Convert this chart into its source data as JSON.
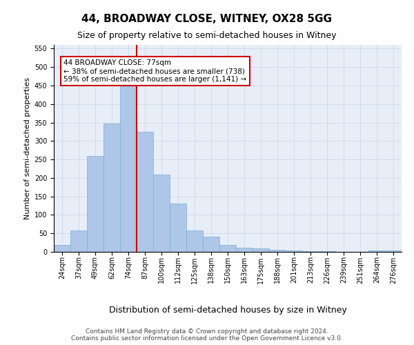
{
  "title_line1": "44, BROADWAY CLOSE, WITNEY, OX28 5GG",
  "title_line2": "Size of property relative to semi-detached houses in Witney",
  "xlabel": "Distribution of semi-detached houses by size in Witney",
  "ylabel": "Number of semi-detached properties",
  "footer_line1": "Contains HM Land Registry data © Crown copyright and database right 2024.",
  "footer_line2": "Contains public sector information licensed under the Open Government Licence v3.0.",
  "annotation_title": "44 BROADWAY CLOSE: 77sqm",
  "annotation_line1": "← 38% of semi-detached houses are smaller (738)",
  "annotation_line2": "59% of semi-detached houses are larger (1,141) →",
  "bar_labels": [
    "24sqm",
    "37sqm",
    "49sqm",
    "62sqm",
    "74sqm",
    "87sqm",
    "100sqm",
    "112sqm",
    "125sqm",
    "138sqm",
    "150sqm",
    "163sqm",
    "175sqm",
    "188sqm",
    "201sqm",
    "213sqm",
    "226sqm",
    "239sqm",
    "251sqm",
    "264sqm",
    "276sqm"
  ],
  "bar_values": [
    18,
    57,
    260,
    347,
    449,
    325,
    210,
    130,
    57,
    41,
    18,
    12,
    9,
    6,
    4,
    1,
    1,
    0,
    0,
    4,
    3
  ],
  "bar_color": "#aec6e8",
  "bar_edgecolor": "#7aafd4",
  "vline_color": "#cc0000",
  "vline_x": 4.5,
  "ylim": [
    0,
    560
  ],
  "yticks": [
    0,
    50,
    100,
    150,
    200,
    250,
    300,
    350,
    400,
    450,
    500,
    550
  ],
  "grid_color": "#c8d4e8",
  "bg_color": "#e8eef8",
  "ann_edgecolor": "#cc0000",
  "title_fontsize": 11,
  "subtitle_fontsize": 9,
  "ylabel_fontsize": 8,
  "xlabel_fontsize": 9,
  "tick_fontsize": 7,
  "footer_fontsize": 6.5
}
